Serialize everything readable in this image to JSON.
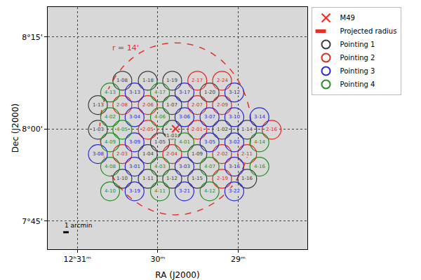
{
  "chart_data": {
    "type": "scatter",
    "x_label": "RA (J2000)",
    "y_label": "Dec (J2000)",
    "xlim": [
      187.842,
      187.035
    ],
    "ylim": [
      7.674,
      8.331
    ],
    "xticks": [
      {
        "value": 187.75,
        "label": "12ʰ31ᵐ"
      },
      {
        "value": 187.5,
        "label": "30ᵐ"
      },
      {
        "value": 187.25,
        "label": "29ᵐ"
      }
    ],
    "yticks": [
      {
        "value": 7.75,
        "label": "7°45'"
      },
      {
        "value": 8.0,
        "label": "8°00'"
      },
      {
        "value": 8.25,
        "label": "8°15'"
      }
    ],
    "grid": true,
    "legend": "right",
    "series": [
      {
        "name": "M49",
        "color": "#e8302a",
        "marker": "x",
        "x": [
          187.4446
        ],
        "y": [
          8.0006
        ]
      },
      {
        "name": "Projected radius",
        "color": "#e8302a",
        "line_style": "dashed",
        "center": "M49",
        "radius_arcmin": 14,
        "label": "r = 14'"
      },
      {
        "name": "Pointing 1",
        "color": "#3c3c3c",
        "marker": "circle",
        "labels": [
          "1-08",
          "1-18",
          "1-19",
          "1-20",
          "1-13",
          "1-07",
          "1-03",
          "1-01",
          "1-02",
          "1-14",
          "1-05",
          "1-04",
          "1-09",
          "1-10",
          "1-11",
          "1-12",
          "1-15",
          "1-16"
        ],
        "x": [
          187.61,
          187.531,
          187.455,
          187.339,
          187.686,
          187.455,
          187.686,
          187.455,
          187.3,
          187.222,
          187.493,
          187.531,
          187.377,
          187.61,
          187.531,
          187.455,
          187.377,
          187.222
        ],
        "y": [
          8.131,
          8.131,
          8.131,
          8.099,
          8.065,
          8.065,
          7.998,
          7.998,
          7.998,
          7.998,
          7.964,
          7.932,
          7.932,
          7.865,
          7.865,
          7.865,
          7.865,
          7.865
        ]
      },
      {
        "name": "Pointing 2",
        "color": "#e0281e",
        "marker": "circle",
        "labels": [
          "2-17",
          "2-24",
          "2-08",
          "2-06",
          "2-07",
          "2-09",
          "2-05",
          "2-01",
          "2-16",
          "2-03",
          "2-04",
          "2-02",
          "2-11",
          "2-19"
        ],
        "x": [
          187.377,
          187.3,
          187.61,
          187.531,
          187.377,
          187.3,
          187.531,
          187.377,
          187.146,
          187.61,
          187.455,
          187.3,
          187.222,
          187.3
        ],
        "y": [
          8.131,
          8.131,
          8.065,
          8.065,
          8.065,
          8.065,
          7.998,
          7.998,
          7.998,
          7.932,
          7.932,
          7.932,
          7.932,
          7.865
        ]
      },
      {
        "name": "Pointing 3",
        "color": "#2828d2",
        "marker": "circle",
        "labels": [
          "3-13",
          "3-17",
          "3-12",
          "3-04",
          "3-06",
          "3-07",
          "3-10",
          "3-14",
          "3-09",
          "3-05",
          "3-02",
          "3-08",
          "3-01",
          "3-03",
          "3-16",
          "3-19",
          "3-21",
          "3-22"
        ],
        "x": [
          187.572,
          187.417,
          187.262,
          187.572,
          187.417,
          187.339,
          187.262,
          187.184,
          187.572,
          187.339,
          187.262,
          187.686,
          187.572,
          187.417,
          187.262,
          187.572,
          187.417,
          187.262
        ],
        "y": [
          8.099,
          8.099,
          8.099,
          8.032,
          8.032,
          8.032,
          8.032,
          8.032,
          7.964,
          7.964,
          7.964,
          7.932,
          7.898,
          7.898,
          7.898,
          7.831,
          7.831,
          7.831
        ]
      },
      {
        "name": "Pointing 4",
        "color": "#1f8f1f",
        "marker": "circle",
        "labels": [
          "4-13",
          "4-17",
          "4-02",
          "4-06",
          "4-05",
          "4-09",
          "4-01",
          "4-14",
          "4-08",
          "4-03",
          "4-07",
          "4-16",
          "4-10",
          "4-11",
          "4-12"
        ],
        "x": [
          187.648,
          187.493,
          187.648,
          187.493,
          187.61,
          187.648,
          187.417,
          187.184,
          187.648,
          187.493,
          187.339,
          187.184,
          187.648,
          187.493,
          187.339
        ],
        "y": [
          8.099,
          8.099,
          8.032,
          8.032,
          7.998,
          7.964,
          7.964,
          7.964,
          7.898,
          7.898,
          7.898,
          7.898,
          7.831,
          7.831,
          7.831
        ]
      }
    ],
    "scale_bar": {
      "label": "1 arcmin",
      "length_arcmin": 1
    }
  }
}
